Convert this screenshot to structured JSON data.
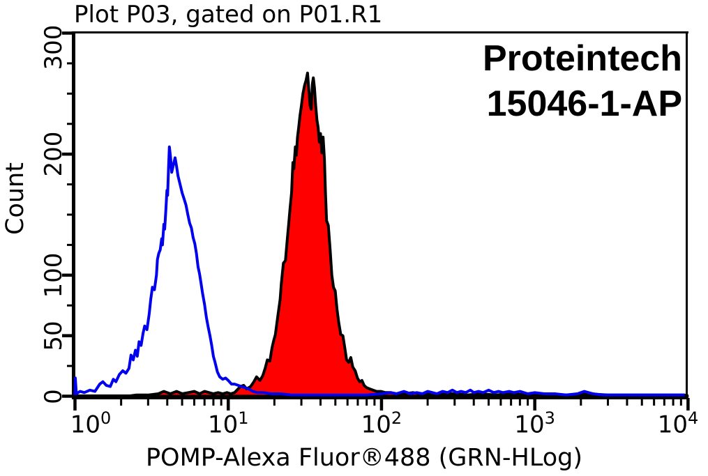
{
  "title": "Plot P03, gated on P01.R1",
  "annotation": {
    "line1": "Proteintech",
    "line2": "15046-1-AP"
  },
  "chart_data": {
    "type": "area",
    "title": "Plot P03, gated on P01.R1",
    "xlabel": "POMP-Alexa Fluor®488 (GRN-HLog)",
    "ylabel": "Count",
    "x_scale": "log10",
    "xlim": [
      1,
      10000
    ],
    "ylim": [
      0,
      300
    ],
    "grid": false,
    "legend": "none",
    "x_tick_base": "10",
    "x_major_ticks": [
      1,
      10,
      100,
      1000,
      10000
    ],
    "x_tick_exponents": [
      0,
      1,
      2,
      3,
      4
    ],
    "y_major_ticks": [
      0,
      50,
      100,
      200,
      300
    ],
    "y_minor_ticks": [
      25,
      75,
      125,
      150,
      175,
      225,
      250,
      275
    ],
    "annotation_lines": [
      "Proteintech",
      "15046-1-AP"
    ],
    "series": [
      {
        "name": "red-filled-histogram",
        "style": "filled",
        "fill": "#FF0000",
        "outline": "#000000",
        "peak": {
          "x": 33,
          "count": 267
        },
        "points": [
          [
            2.2,
            0
          ],
          [
            2.5,
            1
          ],
          [
            3.0,
            1
          ],
          [
            3.5,
            2
          ],
          [
            3.8,
            4
          ],
          [
            4.2,
            2
          ],
          [
            4.6,
            4
          ],
          [
            5.0,
            2
          ],
          [
            5.5,
            3
          ],
          [
            6.0,
            4
          ],
          [
            6.5,
            2
          ],
          [
            7.0,
            4
          ],
          [
            7.5,
            3
          ],
          [
            8.0,
            2
          ],
          [
            8.6,
            3
          ],
          [
            9.2,
            2
          ],
          [
            9.8,
            3
          ],
          [
            10.4,
            2
          ],
          [
            11.0,
            3
          ],
          [
            11.4,
            5
          ],
          [
            12.0,
            8
          ],
          [
            12.6,
            9
          ],
          [
            13.2,
            6
          ],
          [
            14.0,
            8
          ],
          [
            14.7,
            12
          ],
          [
            15.3,
            16
          ],
          [
            16.1,
            13
          ],
          [
            16.8,
            17
          ],
          [
            17.4,
            23
          ],
          [
            18.0,
            30
          ],
          [
            18.7,
            29
          ],
          [
            19.3,
            40
          ],
          [
            19.8,
            46
          ],
          [
            20.3,
            51
          ],
          [
            21.0,
            65
          ],
          [
            21.8,
            80
          ],
          [
            22.2,
            93
          ],
          [
            22.9,
            110
          ],
          [
            23.6,
            112
          ],
          [
            24.2,
            128
          ],
          [
            24.9,
            145
          ],
          [
            25.3,
            155
          ],
          [
            25.9,
            168
          ],
          [
            26.4,
            193
          ],
          [
            26.8,
            188
          ],
          [
            27.4,
            206
          ],
          [
            27.8,
            199
          ],
          [
            28.3,
            214
          ],
          [
            28.8,
            222
          ],
          [
            29.4,
            232
          ],
          [
            30.0,
            240
          ],
          [
            30.7,
            250
          ],
          [
            31.5,
            257
          ],
          [
            32.2,
            261
          ],
          [
            32.9,
            267
          ],
          [
            33.6,
            252
          ],
          [
            34.2,
            240
          ],
          [
            34.8,
            237
          ],
          [
            35.4,
            258
          ],
          [
            35.9,
            263
          ],
          [
            36.5,
            255
          ],
          [
            37.2,
            240
          ],
          [
            37.9,
            228
          ],
          [
            38.6,
            222
          ],
          [
            39.3,
            210
          ],
          [
            40.0,
            217
          ],
          [
            40.8,
            201
          ],
          [
            41.6,
            214
          ],
          [
            42.4,
            196
          ],
          [
            43.1,
            168
          ],
          [
            43.8,
            145
          ],
          [
            45.0,
            141
          ],
          [
            46.2,
            121
          ],
          [
            47.4,
            100
          ],
          [
            48.6,
            90
          ],
          [
            49.9,
            87
          ],
          [
            51.2,
            72
          ],
          [
            52.6,
            61
          ],
          [
            54.2,
            51
          ],
          [
            56.0,
            50
          ],
          [
            57.6,
            40
          ],
          [
            59.2,
            30
          ],
          [
            61.0,
            28
          ],
          [
            63.0,
            32
          ],
          [
            65.0,
            24
          ],
          [
            67.3,
            21
          ],
          [
            69.6,
            15
          ],
          [
            72.0,
            12
          ],
          [
            74.5,
            13
          ],
          [
            77.0,
            9
          ],
          [
            80.0,
            7
          ],
          [
            84.0,
            6
          ],
          [
            88.0,
            5
          ],
          [
            93.0,
            4
          ],
          [
            99.0,
            4
          ],
          [
            106,
            3
          ],
          [
            115,
            3
          ],
          [
            125,
            2
          ],
          [
            140,
            2
          ],
          [
            160,
            3
          ],
          [
            180,
            2
          ],
          [
            210,
            2
          ],
          [
            250,
            2
          ],
          [
            300,
            2
          ],
          [
            360,
            1
          ],
          [
            450,
            2
          ],
          [
            550,
            1
          ],
          [
            700,
            2
          ],
          [
            900,
            1
          ],
          [
            1200,
            2
          ],
          [
            1600,
            1
          ],
          [
            2200,
            2
          ],
          [
            3000,
            1
          ],
          [
            4500,
            1
          ],
          [
            6500,
            1
          ],
          [
            9500,
            1
          ],
          [
            9900,
            0
          ]
        ]
      },
      {
        "name": "blue-open-histogram",
        "style": "open-line",
        "color": "#0000EE",
        "peak": {
          "x": 4.1,
          "count": 206
        },
        "points": [
          [
            1.0,
            1
          ],
          [
            1.005,
            15
          ],
          [
            1.02,
            2
          ],
          [
            1.08,
            4
          ],
          [
            1.15,
            3
          ],
          [
            1.25,
            5
          ],
          [
            1.35,
            4
          ],
          [
            1.45,
            10
          ],
          [
            1.52,
            12
          ],
          [
            1.6,
            9
          ],
          [
            1.7,
            8
          ],
          [
            1.78,
            14
          ],
          [
            1.85,
            12
          ],
          [
            1.95,
            18
          ],
          [
            2.05,
            21
          ],
          [
            2.15,
            19
          ],
          [
            2.25,
            23
          ],
          [
            2.32,
            34
          ],
          [
            2.4,
            30
          ],
          [
            2.48,
            38
          ],
          [
            2.55,
            33
          ],
          [
            2.62,
            45
          ],
          [
            2.7,
            42
          ],
          [
            2.78,
            52
          ],
          [
            2.85,
            58
          ],
          [
            2.95,
            55
          ],
          [
            3.05,
            68
          ],
          [
            3.12,
            80
          ],
          [
            3.2,
            90
          ],
          [
            3.3,
            88
          ],
          [
            3.4,
            100
          ],
          [
            3.45,
            113
          ],
          [
            3.52,
            118
          ],
          [
            3.6,
            121
          ],
          [
            3.68,
            130
          ],
          [
            3.72,
            125
          ],
          [
            3.8,
            142
          ],
          [
            3.85,
            138
          ],
          [
            3.92,
            155
          ],
          [
            3.98,
            170
          ],
          [
            4.02,
            166
          ],
          [
            4.08,
            190
          ],
          [
            4.13,
            206
          ],
          [
            4.2,
            198
          ],
          [
            4.28,
            185
          ],
          [
            4.4,
            192
          ],
          [
            4.5,
            197
          ],
          [
            4.6,
            190
          ],
          [
            4.7,
            182
          ],
          [
            4.85,
            175
          ],
          [
            5.0,
            168
          ],
          [
            5.15,
            163
          ],
          [
            5.3,
            158
          ],
          [
            5.45,
            150
          ],
          [
            5.6,
            143
          ],
          [
            5.75,
            139
          ],
          [
            5.9,
            131
          ],
          [
            6.05,
            126
          ],
          [
            6.2,
            118
          ],
          [
            6.35,
            107
          ],
          [
            6.5,
            101
          ],
          [
            6.65,
            93
          ],
          [
            6.8,
            85
          ],
          [
            7.0,
            76
          ],
          [
            7.2,
            65
          ],
          [
            7.4,
            57
          ],
          [
            7.6,
            50
          ],
          [
            7.8,
            42
          ],
          [
            8.0,
            33
          ],
          [
            8.2,
            28
          ],
          [
            8.5,
            20
          ],
          [
            8.8,
            16
          ],
          [
            9.2,
            14
          ],
          [
            9.6,
            15
          ],
          [
            10.0,
            13
          ],
          [
            10.5,
            10
          ],
          [
            11.0,
            10
          ],
          [
            11.6,
            9
          ],
          [
            12.2,
            8
          ],
          [
            12.9,
            7
          ],
          [
            13.6,
            6
          ],
          [
            14.5,
            4
          ],
          [
            15.5,
            3
          ],
          [
            17,
            3
          ],
          [
            19,
            2
          ],
          [
            22,
            2
          ],
          [
            26,
            1
          ],
          [
            30,
            1
          ],
          [
            40,
            1
          ],
          [
            60,
            1
          ],
          [
            80,
            1
          ],
          [
            100,
            2
          ],
          [
            115,
            3
          ],
          [
            125,
            2
          ],
          [
            140,
            4
          ],
          [
            155,
            2
          ],
          [
            170,
            3
          ],
          [
            185,
            2
          ],
          [
            200,
            4
          ],
          [
            215,
            3
          ],
          [
            230,
            2
          ],
          [
            250,
            4
          ],
          [
            270,
            3
          ],
          [
            290,
            5
          ],
          [
            310,
            3
          ],
          [
            330,
            4
          ],
          [
            355,
            3
          ],
          [
            380,
            5
          ],
          [
            400,
            3
          ],
          [
            430,
            4
          ],
          [
            460,
            3
          ],
          [
            500,
            5
          ],
          [
            540,
            3
          ],
          [
            580,
            4
          ],
          [
            620,
            3
          ],
          [
            680,
            4
          ],
          [
            730,
            3
          ],
          [
            800,
            4
          ],
          [
            900,
            2
          ],
          [
            1000,
            3
          ],
          [
            1150,
            2
          ],
          [
            1350,
            2
          ],
          [
            1600,
            1
          ],
          [
            1900,
            2
          ],
          [
            2100,
            4
          ],
          [
            2400,
            2
          ],
          [
            2800,
            1
          ],
          [
            3500,
            1
          ],
          [
            5000,
            1
          ],
          [
            7000,
            1
          ],
          [
            9500,
            1
          ]
        ]
      }
    ]
  }
}
